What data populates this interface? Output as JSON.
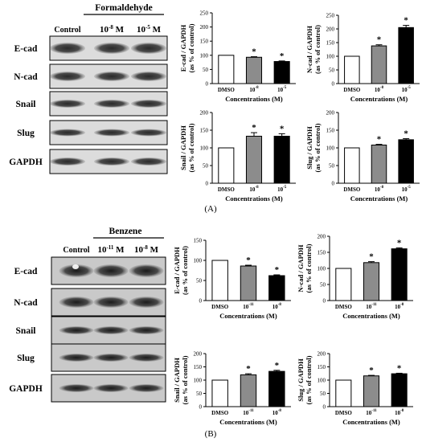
{
  "panels": [
    {
      "label": "(A)",
      "treatment": "Formaldehyde",
      "lanes": [
        {
          "base": "Control",
          "exp": ""
        },
        {
          "base": "10",
          "exp": "-8",
          "unit": " M"
        },
        {
          "base": "10",
          "exp": "-5",
          "unit": " M"
        }
      ],
      "blots": [
        "E-cad",
        "N-cad",
        "Snail",
        "Slug",
        "GAPDH"
      ],
      "blot_style": "clean"
    },
    {
      "label": "(B)",
      "treatment": "Benzene",
      "lanes": [
        {
          "base": "Control",
          "exp": ""
        },
        {
          "base": "10",
          "exp": "-11",
          "unit": " M"
        },
        {
          "base": "10",
          "exp": "-8",
          "unit": " M"
        }
      ],
      "blots": [
        "E-cad",
        "N-cad",
        "Snail",
        "Slug",
        "GAPDH"
      ],
      "blot_style": "dark"
    }
  ],
  "chart_data": [
    {
      "type": "bar",
      "panel": "A",
      "ylabel": [
        "E-cad / GAPDH",
        "(as % of control)"
      ],
      "xlabel": "Concentrations (M)",
      "ylim": [
        0,
        250
      ],
      "yticks": [
        0,
        50,
        100,
        150,
        200,
        250
      ],
      "categories": [
        {
          "base": "DMSO",
          "exp": ""
        },
        {
          "base": "10",
          "exp": "-8"
        },
        {
          "base": "10",
          "exp": "-5"
        }
      ],
      "values": [
        100,
        93,
        78
      ],
      "errors": [
        0,
        2,
        2
      ],
      "significant": [
        false,
        true,
        true
      ],
      "bar_colors": [
        "#ffffff",
        "#8c8c8c",
        "#000000"
      ]
    },
    {
      "type": "bar",
      "panel": "A",
      "ylabel": [
        "N-cad / GAPDH",
        "(as % of control)"
      ],
      "xlabel": "Concentrations (M)",
      "ylim": [
        0,
        250
      ],
      "yticks": [
        0,
        50,
        100,
        150,
        200,
        250
      ],
      "categories": [
        {
          "base": "DMSO",
          "exp": ""
        },
        {
          "base": "10",
          "exp": "-8"
        },
        {
          "base": "10",
          "exp": "-5"
        }
      ],
      "values": [
        100,
        138,
        205
      ],
      "errors": [
        0,
        4,
        8
      ],
      "significant": [
        false,
        true,
        true
      ],
      "bar_colors": [
        "#ffffff",
        "#8c8c8c",
        "#000000"
      ]
    },
    {
      "type": "bar",
      "panel": "A",
      "ylabel": [
        "Snail / GAPDH",
        "(as % of control)"
      ],
      "xlabel": "Concentrations (M)",
      "ylim": [
        0,
        200
      ],
      "yticks": [
        0,
        50,
        100,
        150,
        200
      ],
      "categories": [
        {
          "base": "DMSO",
          "exp": ""
        },
        {
          "base": "10",
          "exp": "-8"
        },
        {
          "base": "10",
          "exp": "-5"
        }
      ],
      "values": [
        100,
        133,
        133
      ],
      "errors": [
        0,
        10,
        7
      ],
      "significant": [
        false,
        true,
        true
      ],
      "bar_colors": [
        "#ffffff",
        "#8c8c8c",
        "#000000"
      ]
    },
    {
      "type": "bar",
      "panel": "A",
      "ylabel": [
        "Slug / GAPDH",
        "(as % of control)"
      ],
      "xlabel": "Concentrations (M)",
      "ylim": [
        0,
        200
      ],
      "yticks": [
        0,
        50,
        100,
        150,
        200
      ],
      "categories": [
        {
          "base": "DMSO",
          "exp": ""
        },
        {
          "base": "10",
          "exp": "-8"
        },
        {
          "base": "10",
          "exp": "-5"
        }
      ],
      "values": [
        100,
        108,
        123
      ],
      "errors": [
        0,
        2,
        3
      ],
      "significant": [
        false,
        true,
        true
      ],
      "bar_colors": [
        "#ffffff",
        "#8c8c8c",
        "#000000"
      ]
    },
    {
      "type": "bar",
      "panel": "B",
      "ylabel": [
        "E-cad / GAPDH",
        "(as % of control)"
      ],
      "xlabel": "Concentrations (M)",
      "ylim": [
        0,
        150
      ],
      "yticks": [
        0,
        50,
        100,
        150
      ],
      "categories": [
        {
          "base": "DMSO",
          "exp": ""
        },
        {
          "base": "10",
          "exp": "-11"
        },
        {
          "base": "10",
          "exp": "-8"
        }
      ],
      "values": [
        100,
        86,
        62
      ],
      "errors": [
        0,
        2,
        2
      ],
      "significant": [
        false,
        true,
        true
      ],
      "bar_colors": [
        "#ffffff",
        "#8c8c8c",
        "#000000"
      ]
    },
    {
      "type": "bar",
      "panel": "B",
      "ylabel": [
        "N-cad / GAPDH",
        "(as % of control)"
      ],
      "xlabel": "Concentrations (M)",
      "ylim": [
        0,
        200
      ],
      "yticks": [
        0,
        50,
        100,
        150,
        200
      ],
      "categories": [
        {
          "base": "DMSO",
          "exp": ""
        },
        {
          "base": "10",
          "exp": "-11"
        },
        {
          "base": "10",
          "exp": "-8"
        }
      ],
      "values": [
        100,
        118,
        161
      ],
      "errors": [
        0,
        3,
        3
      ],
      "significant": [
        false,
        true,
        true
      ],
      "bar_colors": [
        "#ffffff",
        "#8c8c8c",
        "#000000"
      ]
    },
    {
      "type": "bar",
      "panel": "B",
      "ylabel": [
        "Snail / GAPDH",
        "(as % of control)"
      ],
      "xlabel": "Concentrations (M)",
      "ylim": [
        0,
        200
      ],
      "yticks": [
        0,
        50,
        100,
        150,
        200
      ],
      "categories": [
        {
          "base": "DMSO",
          "exp": ""
        },
        {
          "base": "10",
          "exp": "-11"
        },
        {
          "base": "10",
          "exp": "-8"
        }
      ],
      "values": [
        100,
        120,
        133
      ],
      "errors": [
        0,
        4,
        4
      ],
      "significant": [
        false,
        true,
        true
      ],
      "bar_colors": [
        "#ffffff",
        "#8c8c8c",
        "#000000"
      ]
    },
    {
      "type": "bar",
      "panel": "B",
      "ylabel": [
        "Slug / GAPDH",
        "(as % of control)"
      ],
      "xlabel": "Concentrations (M)",
      "ylim": [
        0,
        200
      ],
      "yticks": [
        0,
        50,
        100,
        150,
        200
      ],
      "categories": [
        {
          "base": "DMSO",
          "exp": ""
        },
        {
          "base": "10",
          "exp": "-11"
        },
        {
          "base": "10",
          "exp": "-8"
        }
      ],
      "values": [
        100,
        116,
        124
      ],
      "errors": [
        0,
        2,
        2
      ],
      "significant": [
        false,
        true,
        true
      ],
      "bar_colors": [
        "#ffffff",
        "#8c8c8c",
        "#000000"
      ]
    }
  ]
}
